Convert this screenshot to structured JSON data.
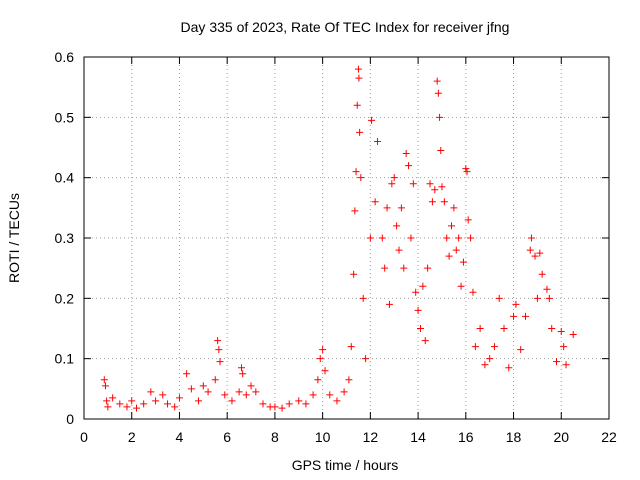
{
  "chart_data": {
    "type": "scatter",
    "title": "Day 335 of 2023, Rate Of TEC Index for receiver jfng",
    "xlabel": "GPS time / hours",
    "ylabel": "ROTI / TECUs",
    "xlim": [
      0,
      22
    ],
    "ylim": [
      0,
      0.6
    ],
    "xticks": [
      0,
      2,
      4,
      6,
      8,
      10,
      12,
      14,
      16,
      18,
      20,
      22
    ],
    "yticks": [
      0,
      0.1,
      0.2,
      0.3,
      0.4,
      0.5,
      0.6
    ],
    "grid": true,
    "marker": "+",
    "color": "#ff0000",
    "series": [
      {
        "points": [
          [
            0.85,
            0.065
          ],
          [
            0.9,
            0.055
          ],
          [
            0.95,
            0.03
          ],
          [
            1.0,
            0.02
          ],
          [
            1.2,
            0.035
          ],
          [
            1.5,
            0.025
          ],
          [
            1.8,
            0.02
          ],
          [
            2.0,
            0.03
          ],
          [
            2.2,
            0.018
          ],
          [
            2.5,
            0.025
          ],
          [
            2.8,
            0.045
          ],
          [
            3.0,
            0.03
          ],
          [
            3.3,
            0.04
          ],
          [
            3.5,
            0.025
          ],
          [
            3.8,
            0.02
          ],
          [
            4.0,
            0.035
          ],
          [
            4.3,
            0.075
          ],
          [
            4.5,
            0.05
          ],
          [
            4.8,
            0.03
          ],
          [
            5.0,
            0.055
          ],
          [
            5.2,
            0.045
          ],
          [
            5.5,
            0.065
          ],
          [
            5.6,
            0.13
          ],
          [
            5.65,
            0.115
          ],
          [
            5.7,
            0.095
          ],
          [
            5.9,
            0.04
          ],
          [
            6.2,
            0.03
          ],
          [
            6.5,
            0.045
          ],
          [
            6.6,
            0.085
          ],
          [
            6.65,
            0.075
          ],
          [
            6.8,
            0.04
          ],
          [
            7.0,
            0.055
          ],
          [
            7.2,
            0.045
          ],
          [
            7.5,
            0.025
          ],
          [
            7.8,
            0.02
          ],
          [
            8.0,
            0.02
          ],
          [
            8.3,
            0.018
          ],
          [
            8.6,
            0.025
          ],
          [
            9.0,
            0.03
          ],
          [
            9.3,
            0.025
          ],
          [
            9.6,
            0.04
          ],
          [
            9.8,
            0.065
          ],
          [
            9.9,
            0.1
          ],
          [
            10.0,
            0.115
          ],
          [
            10.1,
            0.08
          ],
          [
            10.3,
            0.04
          ],
          [
            10.6,
            0.03
          ],
          [
            10.9,
            0.045
          ],
          [
            11.1,
            0.065
          ],
          [
            11.2,
            0.12
          ],
          [
            11.3,
            0.24
          ],
          [
            11.35,
            0.345
          ],
          [
            11.4,
            0.41
          ],
          [
            11.45,
            0.52
          ],
          [
            11.5,
            0.58
          ],
          [
            11.52,
            0.565
          ],
          [
            11.55,
            0.475
          ],
          [
            11.6,
            0.4
          ],
          [
            11.7,
            0.2
          ],
          [
            11.8,
            0.1
          ],
          [
            12.0,
            0.3
          ],
          [
            12.05,
            0.495
          ],
          [
            12.2,
            0.36
          ],
          [
            12.3,
            0.46
          ],
          [
            12.5,
            0.3
          ],
          [
            12.6,
            0.25
          ],
          [
            12.7,
            0.35
          ],
          [
            12.8,
            0.19
          ],
          [
            12.9,
            0.39
          ],
          [
            13.0,
            0.4
          ],
          [
            13.1,
            0.32
          ],
          [
            13.2,
            0.28
          ],
          [
            13.3,
            0.35
          ],
          [
            13.4,
            0.25
          ],
          [
            13.5,
            0.44
          ],
          [
            13.6,
            0.42
          ],
          [
            13.7,
            0.3
          ],
          [
            13.8,
            0.39
          ],
          [
            13.9,
            0.21
          ],
          [
            14.0,
            0.18
          ],
          [
            14.1,
            0.15
          ],
          [
            14.2,
            0.22
          ],
          [
            14.3,
            0.13
          ],
          [
            14.4,
            0.25
          ],
          [
            14.5,
            0.39
          ],
          [
            14.6,
            0.36
          ],
          [
            14.7,
            0.38
          ],
          [
            14.8,
            0.56
          ],
          [
            14.85,
            0.54
          ],
          [
            14.9,
            0.5
          ],
          [
            14.95,
            0.445
          ],
          [
            15.0,
            0.385
          ],
          [
            15.1,
            0.36
          ],
          [
            15.2,
            0.3
          ],
          [
            15.3,
            0.27
          ],
          [
            15.4,
            0.32
          ],
          [
            15.5,
            0.35
          ],
          [
            15.6,
            0.28
          ],
          [
            15.7,
            0.3
          ],
          [
            15.8,
            0.22
          ],
          [
            15.9,
            0.26
          ],
          [
            16.0,
            0.415
          ],
          [
            16.05,
            0.41
          ],
          [
            16.1,
            0.33
          ],
          [
            16.2,
            0.3
          ],
          [
            16.3,
            0.21
          ],
          [
            16.4,
            0.12
          ],
          [
            16.6,
            0.15
          ],
          [
            16.8,
            0.09
          ],
          [
            17.0,
            0.1
          ],
          [
            17.2,
            0.12
          ],
          [
            17.4,
            0.2
          ],
          [
            17.6,
            0.15
          ],
          [
            17.8,
            0.085
          ],
          [
            18.0,
            0.17
          ],
          [
            18.1,
            0.19
          ],
          [
            18.3,
            0.115
          ],
          [
            18.5,
            0.17
          ],
          [
            18.7,
            0.28
          ],
          [
            18.75,
            0.3
          ],
          [
            18.9,
            0.27
          ],
          [
            19.0,
            0.2
          ],
          [
            19.1,
            0.275
          ],
          [
            19.2,
            0.24
          ],
          [
            19.4,
            0.215
          ],
          [
            19.5,
            0.2
          ],
          [
            19.6,
            0.15
          ],
          [
            19.8,
            0.095
          ],
          [
            20.0,
            0.145
          ],
          [
            20.1,
            0.12
          ],
          [
            20.2,
            0.09
          ],
          [
            20.5,
            0.14
          ]
        ]
      }
    ]
  }
}
